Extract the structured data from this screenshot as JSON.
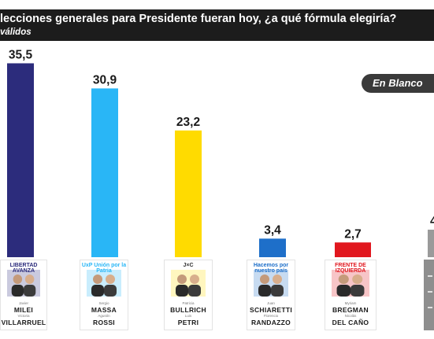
{
  "header": {
    "title": "lecciones generales para Presidente fueran hoy, ¿a qué fórmula elegiría?",
    "subtitle": "válidos"
  },
  "badge": {
    "label": "En Blanco"
  },
  "colors": {
    "milei": "#2c2c7c",
    "massa": "#29b6f6",
    "bullrich": "#ffdb00",
    "schiaretti": "#1e6fc9",
    "bregman": "#e1171e",
    "blanco": "#9a9a9a"
  },
  "chart_data": {
    "type": "bar",
    "categories": [
      "Milei - Villarruel",
      "Massa - Rossi",
      "Bullrich - Petri",
      "Schiaretti - Randazzo",
      "Bregman - Del Caño",
      "En Blanco"
    ],
    "values": [
      35.5,
      30.9,
      23.2,
      3.4,
      2.7,
      null
    ],
    "labels": [
      "35,5",
      "30,9",
      "23,2",
      "3,4",
      "2,7",
      "4"
    ],
    "ylim": [
      0,
      36
    ]
  },
  "candidates": [
    {
      "logo": "LIBERTAD AVANZA",
      "top": "MILEI",
      "bottom": "VILLARRUEL",
      "top_sub": "Javier",
      "bottom_sub": "Victoria",
      "color": "milei"
    },
    {
      "logo": "UxP Unión por la Patria",
      "top": "MASSA",
      "bottom": "ROSSI",
      "top_sub": "Sergio",
      "bottom_sub": "Agustín",
      "color": "massa"
    },
    {
      "logo": "J×C",
      "top": "BULLRICH",
      "bottom": "PETRI",
      "top_sub": "Patricia",
      "bottom_sub": "Luis",
      "color": "bullrich"
    },
    {
      "logo": "Hacemos por nuestro país",
      "top": "SCHIARETTI",
      "bottom": "RANDAZZO",
      "top_sub": "Juan",
      "bottom_sub": "Florencio",
      "color": "schiaretti"
    },
    {
      "logo": "FRENTE DE IZQUIERDA",
      "top": "BREGMAN",
      "bottom": "DEL CAÑO",
      "top_sub": "Myriam",
      "bottom_sub": "Nicolás",
      "color": "bregman"
    }
  ]
}
